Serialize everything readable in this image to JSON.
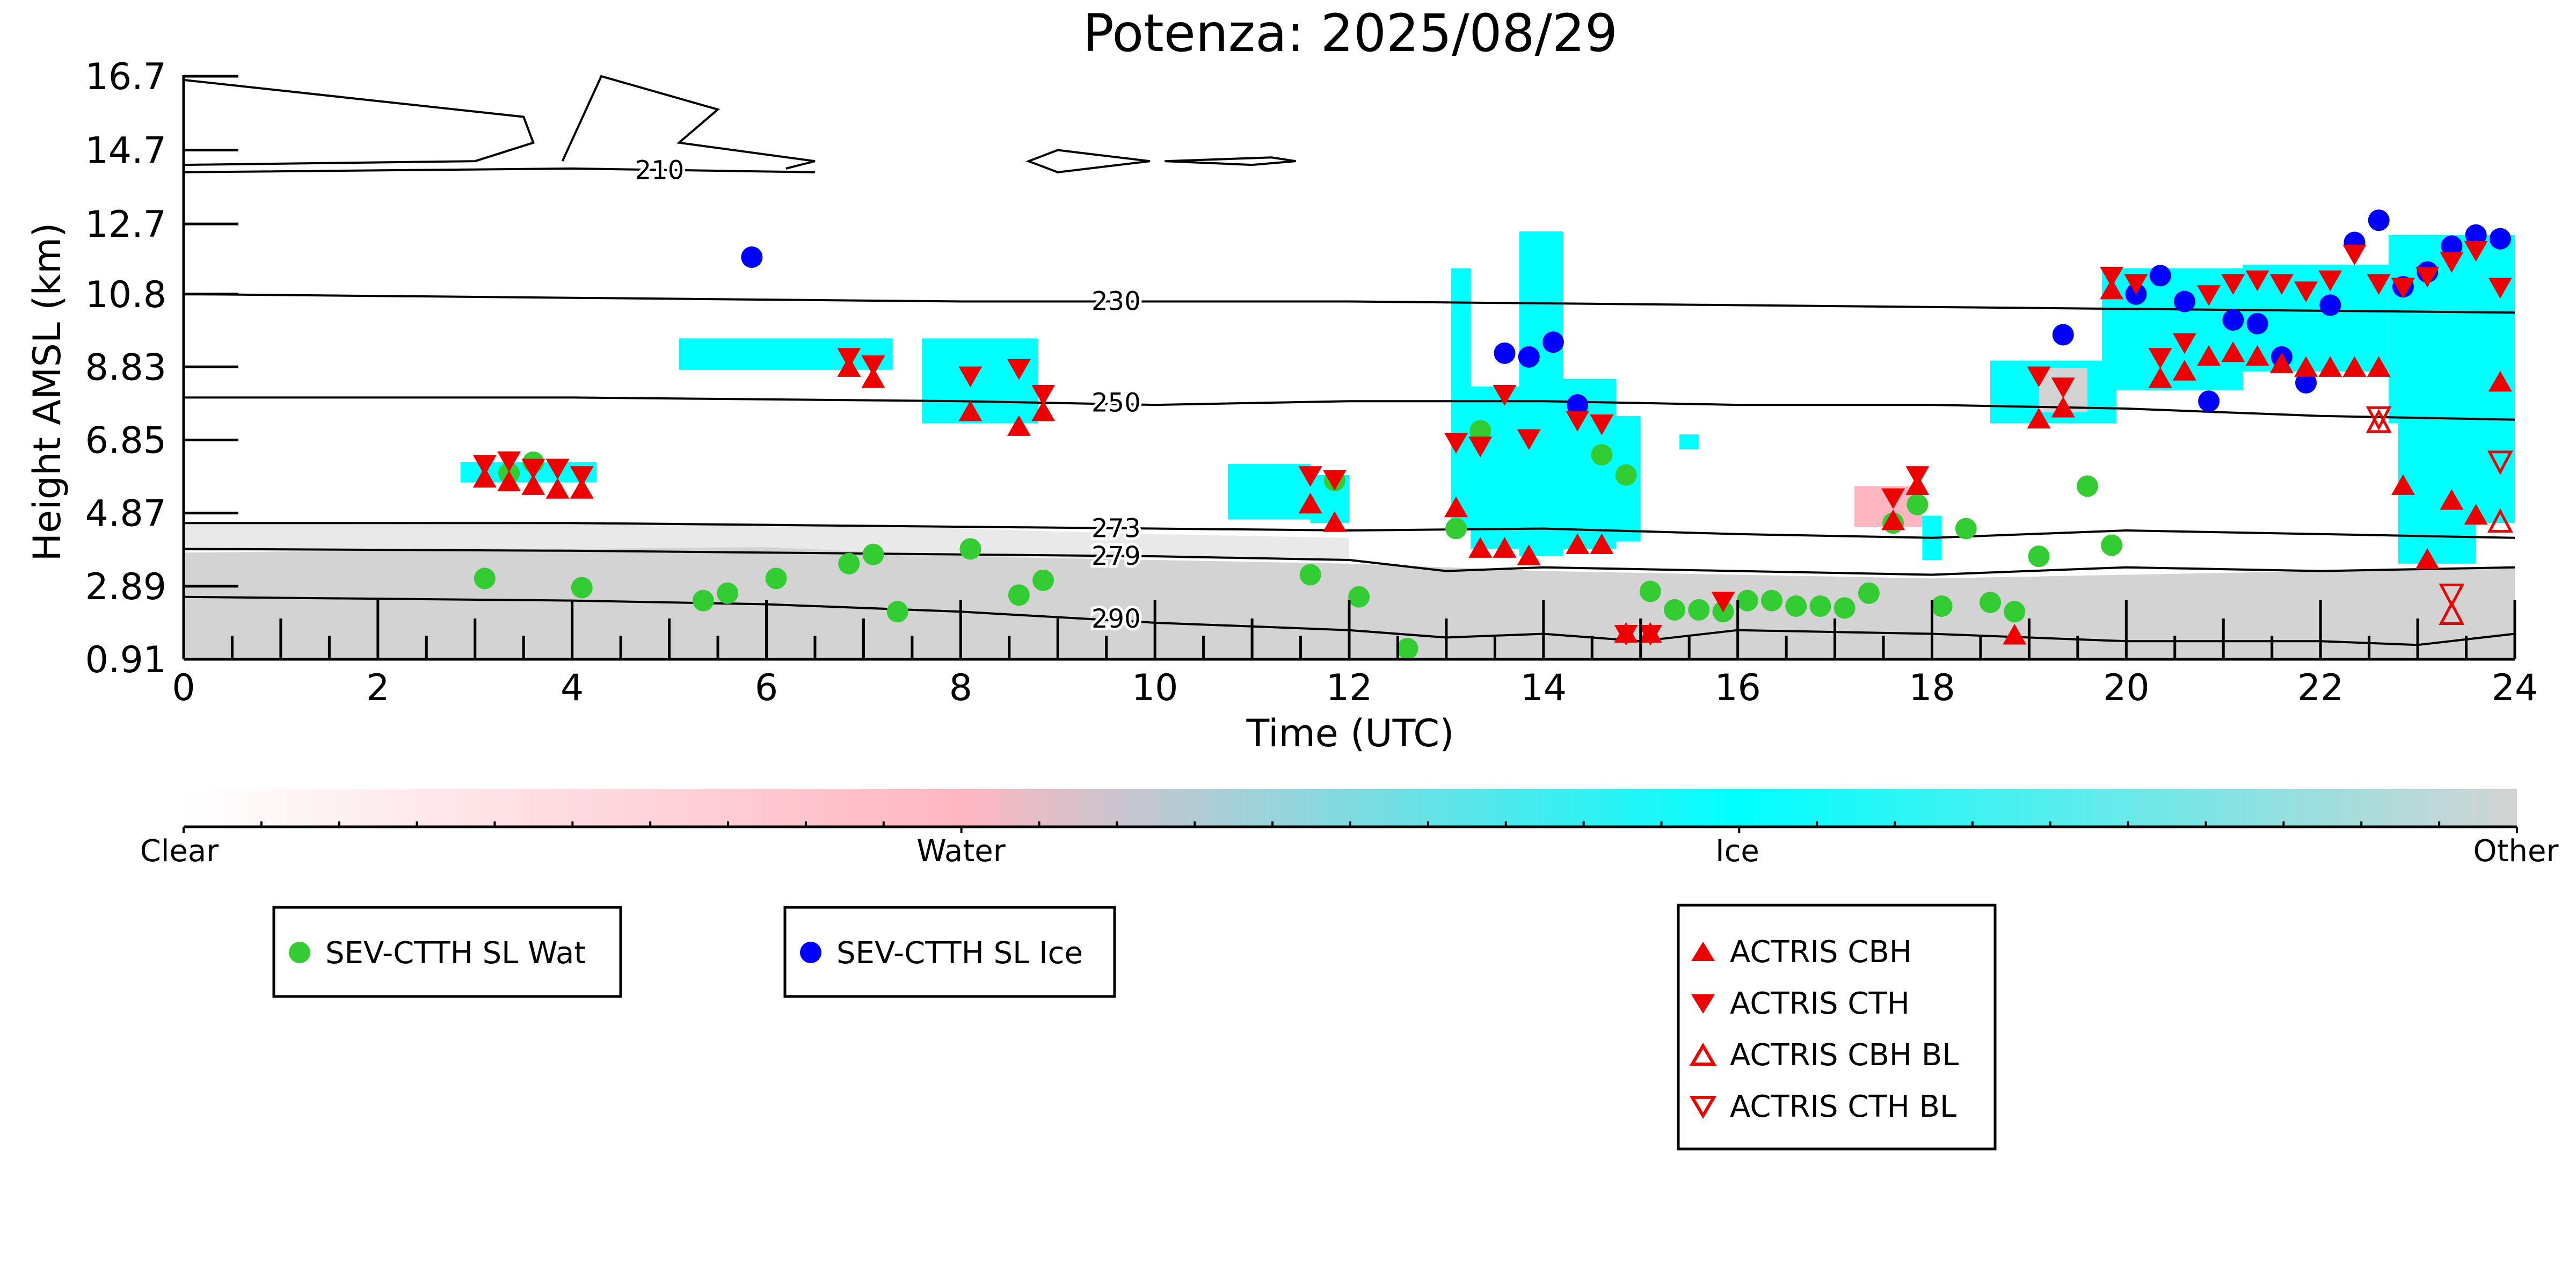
{
  "chart_data": {
    "type": "scatter",
    "title": "Potenza: 2025/08/29",
    "xlabel": "Time (UTC)",
    "ylabel": "Height AMSL (km)",
    "xlim": [
      0,
      24
    ],
    "ylim": [
      0.91,
      16.7
    ],
    "xticks": [
      0,
      2,
      4,
      6,
      8,
      10,
      12,
      14,
      16,
      18,
      20,
      22,
      24
    ],
    "yticks": [
      0.91,
      2.89,
      4.87,
      6.85,
      8.83,
      10.8,
      12.7,
      14.7,
      16.7
    ],
    "ytick_labels": [
      "0.91",
      "2.89",
      "4.87",
      "6.85",
      "8.83",
      "10.8",
      "12.7",
      "14.7",
      "16.7"
    ],
    "colorbar": {
      "labels": [
        "Clear",
        "Water",
        "Ice",
        "Other"
      ],
      "colors": [
        "#ffffff",
        "#ffb6c1",
        "#00ffff",
        "#d3d3d3"
      ]
    },
    "contours": [
      {
        "label": "210",
        "x": [
          0,
          4,
          6.5
        ],
        "y": [
          14.1,
          14.2,
          14.1
        ]
      },
      {
        "label": "230",
        "x": [
          0,
          4,
          8,
          12,
          16,
          20,
          24
        ],
        "y": [
          10.8,
          10.7,
          10.6,
          10.6,
          10.5,
          10.4,
          10.3
        ]
      },
      {
        "label": "250",
        "x": [
          0,
          4,
          8,
          10,
          12,
          14,
          16,
          18,
          20,
          22,
          24
        ],
        "y": [
          8.0,
          8.0,
          7.9,
          7.8,
          7.9,
          7.9,
          7.8,
          7.8,
          7.7,
          7.5,
          7.4
        ]
      },
      {
        "label": "273",
        "x": [
          0,
          4,
          8,
          10,
          12,
          14,
          16,
          18,
          20,
          22,
          24
        ],
        "y": [
          4.6,
          4.6,
          4.5,
          4.45,
          4.4,
          4.45,
          4.3,
          4.2,
          4.4,
          4.3,
          4.2
        ]
      },
      {
        "label": "279",
        "x": [
          0,
          4,
          8,
          10,
          12,
          13,
          14,
          16,
          18,
          20,
          22,
          24
        ],
        "y": [
          3.9,
          3.85,
          3.75,
          3.7,
          3.6,
          3.3,
          3.4,
          3.3,
          3.2,
          3.4,
          3.3,
          3.4
        ]
      },
      {
        "label": "290",
        "x": [
          0,
          4,
          6,
          8,
          10,
          12,
          13,
          14,
          15,
          16,
          18,
          20,
          22,
          23,
          24
        ],
        "y": [
          2.6,
          2.5,
          2.4,
          2.2,
          1.9,
          1.7,
          1.5,
          1.6,
          1.4,
          1.7,
          1.6,
          1.4,
          1.4,
          1.3,
          1.6
        ]
      }
    ],
    "series": [
      {
        "name": "SEV-CTTH SL Wat",
        "marker": "circle",
        "color": "#33cc33",
        "x": [
          3.1,
          3.35,
          3.6,
          4.1,
          5.35,
          5.6,
          6.1,
          6.85,
          7.1,
          7.35,
          8.1,
          8.6,
          8.85,
          11.6,
          11.85,
          12.1,
          12.6,
          13.1,
          13.35,
          14.6,
          14.85,
          15.1,
          15.35,
          15.6,
          15.85,
          16.1,
          16.35,
          16.6,
          16.85,
          17.1,
          17.35,
          17.6,
          17.85,
          18.1,
          18.35,
          18.6,
          18.85,
          19.1,
          19.6,
          19.85
        ],
        "y": [
          3.1,
          5.95,
          6.25,
          2.85,
          2.5,
          2.7,
          3.1,
          3.5,
          3.75,
          2.2,
          3.9,
          2.65,
          3.05,
          3.2,
          5.75,
          2.6,
          1.2,
          4.45,
          7.1,
          6.45,
          5.9,
          2.75,
          2.25,
          2.25,
          2.2,
          2.5,
          2.5,
          2.35,
          2.35,
          2.3,
          2.7,
          4.6,
          5.1,
          2.35,
          4.45,
          2.45,
          2.2,
          3.7,
          5.6,
          4.0
        ]
      },
      {
        "name": "SEV-CTTH SL Ice",
        "marker": "circle",
        "color": "#0000ff",
        "x": [
          5.85,
          13.6,
          13.85,
          14.1,
          14.35,
          19.35,
          20.1,
          20.35,
          20.6,
          20.85,
          21.1,
          21.35,
          21.6,
          21.85,
          22.1,
          22.35,
          22.6,
          22.85,
          23.1,
          23.35,
          23.6,
          23.85
        ],
        "y": [
          11.8,
          9.2,
          9.1,
          9.5,
          7.8,
          9.7,
          10.8,
          11.3,
          10.6,
          7.9,
          10.1,
          10.0,
          9.1,
          8.4,
          10.5,
          12.2,
          12.8,
          11.0,
          11.4,
          12.1,
          12.4,
          12.3
        ]
      },
      {
        "name": "ACTRIS CBH",
        "marker": "triangle-up",
        "color": "#ee0000",
        "x": [
          3.1,
          3.35,
          3.6,
          3.85,
          4.1,
          6.85,
          7.1,
          8.1,
          8.6,
          8.85,
          11.6,
          11.85,
          13.1,
          13.35,
          13.6,
          13.85,
          14.35,
          14.6,
          14.85,
          15.1,
          17.6,
          17.85,
          18.85,
          19.1,
          19.35,
          19.85,
          20.35,
          20.6,
          20.85,
          21.1,
          21.35,
          21.6,
          21.85,
          22.1,
          22.35,
          22.6,
          22.85,
          23.1,
          23.35,
          23.6,
          23.85
        ],
        "y": [
          5.8,
          5.7,
          5.6,
          5.5,
          5.5,
          8.8,
          8.5,
          7.6,
          7.2,
          7.6,
          5.1,
          4.6,
          5.0,
          3.9,
          3.9,
          3.7,
          4.0,
          4.0,
          1.6,
          1.6,
          4.65,
          5.6,
          1.55,
          7.4,
          7.7,
          10.9,
          8.5,
          8.7,
          9.1,
          9.2,
          9.1,
          8.9,
          8.8,
          8.8,
          8.8,
          8.8,
          5.6,
          3.6,
          5.2,
          4.8,
          8.4
        ]
      },
      {
        "name": "ACTRIS CTH",
        "marker": "triangle-down",
        "color": "#ee0000",
        "x": [
          3.1,
          3.35,
          3.6,
          3.85,
          4.1,
          6.85,
          7.1,
          8.1,
          8.6,
          8.85,
          11.6,
          11.85,
          13.1,
          13.35,
          13.6,
          13.85,
          14.35,
          14.6,
          14.85,
          15.1,
          15.85,
          17.6,
          17.85,
          19.1,
          19.35,
          19.85,
          20.1,
          20.35,
          20.6,
          20.85,
          21.1,
          21.35,
          21.6,
          21.85,
          22.1,
          22.35,
          22.6,
          22.85,
          23.1,
          23.35,
          23.6,
          23.85
        ],
        "y": [
          6.2,
          6.3,
          6.1,
          6.1,
          5.9,
          9.1,
          8.9,
          8.6,
          8.8,
          8.1,
          5.9,
          5.8,
          6.8,
          6.7,
          8.1,
          6.9,
          7.4,
          7.3,
          1.6,
          1.6,
          2.5,
          5.3,
          5.9,
          8.6,
          8.3,
          11.3,
          11.1,
          9.1,
          9.5,
          10.8,
          11.1,
          11.2,
          11.1,
          10.9,
          11.2,
          11.9,
          11.1,
          11.0,
          11.3,
          11.7,
          12.0,
          11.0
        ]
      },
      {
        "name": "ACTRIS CBH BL",
        "marker": "triangle-up-open",
        "color": "#ee0000",
        "x": [
          22.6,
          23.35,
          23.85
        ],
        "y": [
          7.3,
          2.1,
          4.6
        ]
      },
      {
        "name": "ACTRIS CTH BL",
        "marker": "triangle-down-open",
        "color": "#ee0000",
        "x": [
          22.6,
          23.35,
          23.85
        ],
        "y": [
          7.5,
          2.7,
          6.3
        ]
      }
    ],
    "legend": [
      {
        "group": "left",
        "items": [
          "SEV-CTTH SL Wat"
        ]
      },
      {
        "group": "middle",
        "items": [
          "SEV-CTTH SL Ice"
        ]
      },
      {
        "group": "right",
        "items": [
          "ACTRIS CBH",
          "ACTRIS CTH",
          "ACTRIS CBH BL",
          "ACTRIS CTH BL"
        ]
      }
    ]
  }
}
